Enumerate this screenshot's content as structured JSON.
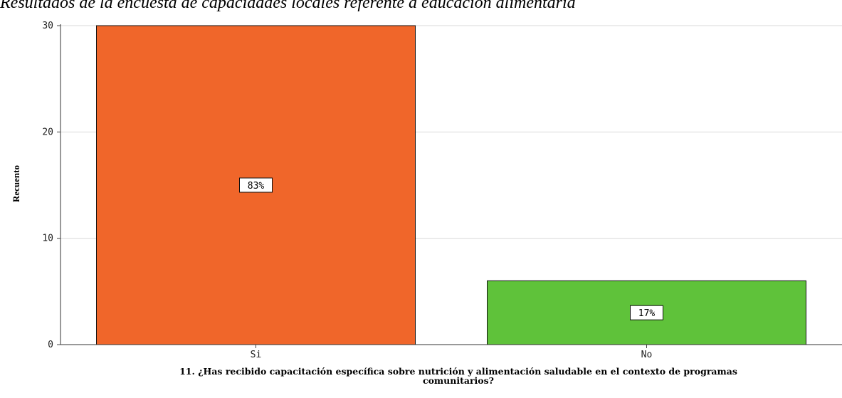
{
  "caption": "Resultados de la encuesta de capacidades locales referente a educación alimentaria",
  "chart_data": {
    "type": "bar",
    "categories": [
      "Si",
      "No"
    ],
    "values": [
      30,
      6
    ],
    "data_labels": [
      "83%",
      "17%"
    ],
    "bar_colors": [
      "#f0662a",
      "#5fc23a"
    ],
    "title": "",
    "xlabel": "11. ¿Has recibido capacitación específica sobre nutrición y alimentación saludable en el contexto de programas comunitarios?",
    "xlabel_lines": [
      "11. ¿Has recibido capacitación específica sobre nutrición y alimentación saludable en el contexto de programas",
      "comunitarios?"
    ],
    "ylabel": "Recuento",
    "ylim": [
      0,
      30
    ],
    "yticks": [
      0,
      10,
      20,
      30
    ],
    "grid": true,
    "legend": "none"
  }
}
